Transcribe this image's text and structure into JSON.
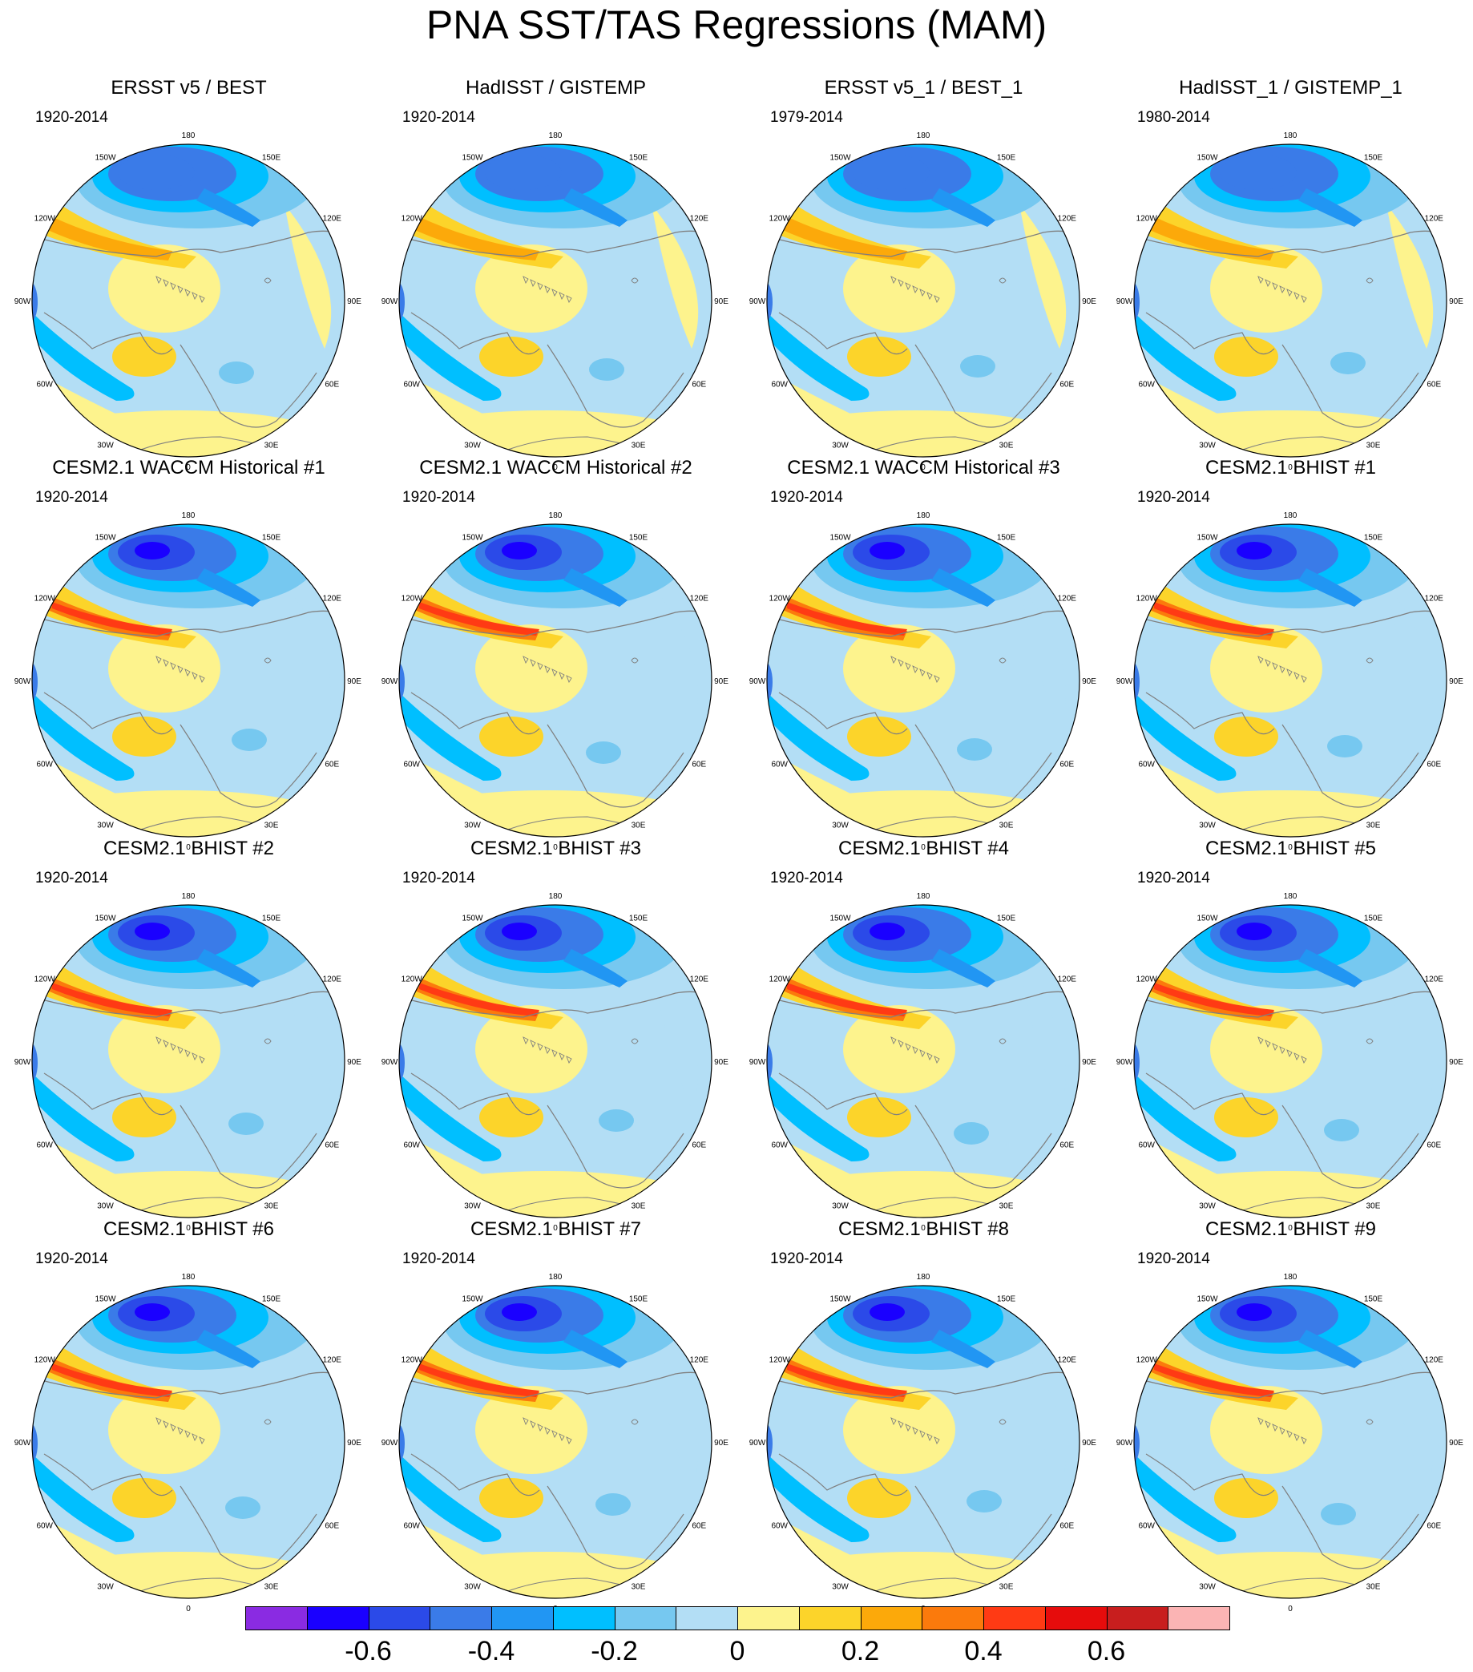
{
  "title": "PNA SST/TAS Regressions (MAM)",
  "longitude_labels": [
    "180",
    "150E",
    "120E",
    "90E",
    "60E",
    "30E",
    "0",
    "30W",
    "60W",
    "90W",
    "120W",
    "150W"
  ],
  "panels": [
    {
      "title": "ERSST v5 / BEST",
      "period": "1920-2014"
    },
    {
      "title": "HadISST / GISTEMP",
      "period": "1920-2014"
    },
    {
      "title": "ERSST v5_1 / BEST_1",
      "period": "1979-2014"
    },
    {
      "title": "HadISST_1 / GISTEMP_1",
      "period": "1980-2014"
    },
    {
      "title": "CESM2.1 WACCM Historical #1",
      "period": "1920-2014"
    },
    {
      "title": "CESM2.1 WACCM Historical #2",
      "period": "1920-2014"
    },
    {
      "title": "CESM2.1 WACCM Historical #3",
      "period": "1920-2014"
    },
    {
      "title": "CESM2.1 BHIST #1",
      "period": "1920-2014"
    },
    {
      "title": "CESM2.1 BHIST #2",
      "period": "1920-2014"
    },
    {
      "title": "CESM2.1 BHIST #3",
      "period": "1920-2014"
    },
    {
      "title": "CESM2.1 BHIST #4",
      "period": "1920-2014"
    },
    {
      "title": "CESM2.1 BHIST #5",
      "period": "1920-2014"
    },
    {
      "title": "CESM2.1 BHIST #6",
      "period": "1920-2014"
    },
    {
      "title": "CESM2.1 BHIST #7",
      "period": "1920-2014"
    },
    {
      "title": "CESM2.1 BHIST #8",
      "period": "1920-2014"
    },
    {
      "title": "CESM2.1 BHIST #9",
      "period": "1920-2014"
    }
  ],
  "colorbar": {
    "colors": [
      "#8a2be2",
      "#1a00ff",
      "#2b4ae8",
      "#3a7be8",
      "#2196f3",
      "#00bfff",
      "#76c8f0",
      "#b3def5",
      "#fdf38d",
      "#fcd42a",
      "#fca90a",
      "#fb7a0c",
      "#ff3a14",
      "#e60c0c",
      "#c81e1e",
      "#fbb4b4"
    ],
    "labels": [
      "-0.6",
      "-0.4",
      "-0.2",
      "0",
      "0.2",
      "0.4",
      "0.6"
    ]
  },
  "palette": {
    "land_bg": "#b3def5",
    "ocean_warm": "#fdf38d",
    "coast": "#7f7f7f"
  }
}
